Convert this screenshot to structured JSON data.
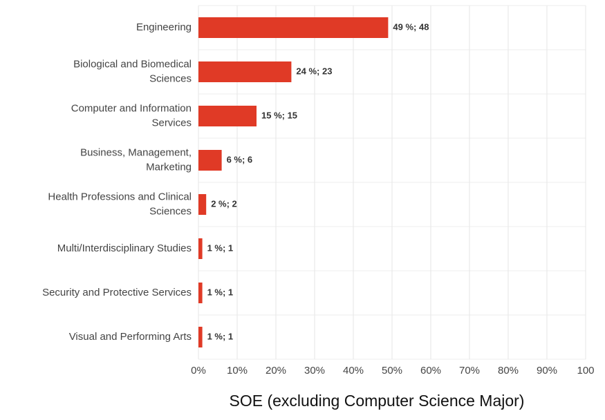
{
  "chart_data": {
    "type": "bar",
    "orientation": "horizontal",
    "title": "SOE (excluding Computer Science Major)",
    "categories": [
      [
        "Engineering"
      ],
      [
        "Biological and Biomedical",
        "Sciences"
      ],
      [
        "Computer and Information",
        "Services"
      ],
      [
        "Business, Management,",
        "Marketing"
      ],
      [
        "Health Professions and Clinical",
        "Sciences"
      ],
      [
        "Multi/Interdisciplinary Studies"
      ],
      [
        "Security and Protective Services"
      ],
      [
        "Visual and Performing Arts"
      ]
    ],
    "values": [
      49,
      24,
      15,
      6,
      2,
      1,
      1,
      1
    ],
    "value_labels": [
      "49 %; 48",
      "24 %; 23",
      "15 %; 15",
      "6 %; 6",
      "2 %; 2",
      "1 %; 1",
      "1 %; 1",
      "1 %; 1"
    ],
    "color": "#e03a26",
    "xlim": [
      0,
      100
    ],
    "xticks": [
      {
        "value": 0,
        "label": "0%"
      },
      {
        "value": 10,
        "label": "10%"
      },
      {
        "value": 20,
        "label": "20%"
      },
      {
        "value": 30,
        "label": "30%"
      },
      {
        "value": 40,
        "label": "40%"
      },
      {
        "value": 50,
        "label": "50%"
      },
      {
        "value": 60,
        "label": "60%"
      },
      {
        "value": 70,
        "label": "70%"
      },
      {
        "value": 80,
        "label": "80%"
      },
      {
        "value": 90,
        "label": "90%"
      },
      100
    ],
    "grid": true
  }
}
